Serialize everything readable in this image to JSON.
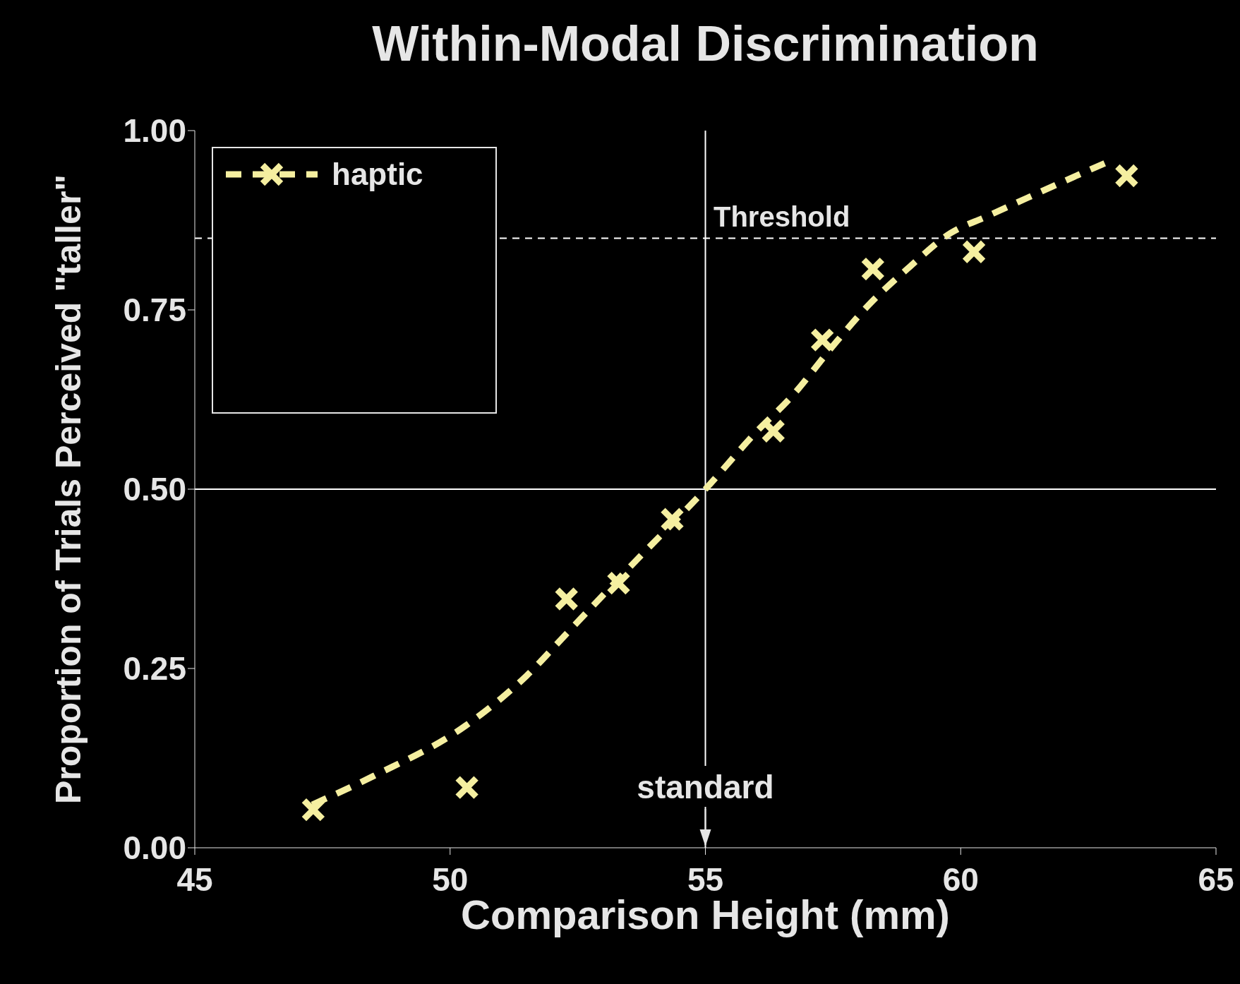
{
  "chart_data": {
    "type": "scatter",
    "title": "Within-Modal Discrimination",
    "xlabel": "Comparison Height (mm)",
    "ylabel": "Proportion of Trials Perceived \"taller\"",
    "xlim": [
      45,
      65
    ],
    "xticks": [
      45,
      50,
      55,
      60,
      65
    ],
    "ylim": [
      0,
      1
    ],
    "yticks": [
      {
        "value": 0,
        "label": "0.00"
      },
      {
        "value": 0.25,
        "label": "0.25"
      },
      {
        "value": 0.5,
        "label": "0.50"
      },
      {
        "value": 0.75,
        "label": "0.75"
      },
      {
        "value": 1,
        "label": "1.00"
      }
    ],
    "legend": "top left",
    "series": [
      {
        "name": "haptic",
        "marker": "cross",
        "color": "#f5efa0",
        "x": [
          47.32,
          50.33,
          52.28,
          53.3,
          54.35,
          56.33,
          57.29,
          58.28,
          60.26,
          63.25
        ],
        "values": [
          0.053,
          0.084,
          0.347,
          0.369,
          0.458,
          0.581,
          0.708,
          0.807,
          0.831,
          0.937
        ]
      },
      {
        "type": "line",
        "line_style": "dashed",
        "color": "#f5efa0",
        "x": [
          47.3,
          48.5,
          50.3,
          51.5,
          52.3,
          53.5,
          55,
          56,
          56.7,
          57.5,
          58.2,
          59,
          59.8,
          60.5,
          61.3,
          62.2,
          63
        ],
        "values": [
          0.06,
          0.1,
          0.17,
          0.24,
          0.3,
          0.39,
          0.5,
          0.58,
          0.63,
          0.7,
          0.757,
          0.81,
          0.857,
          0.88,
          0.906,
          0.935,
          0.96
        ]
      }
    ],
    "ref_lines": [
      {
        "axis": "y",
        "value": 0.85,
        "label": "Threshold",
        "line_style": "dashed",
        "color": "#ffffff"
      },
      {
        "axis": "y",
        "value": 0.5,
        "color": "#ffffff"
      },
      {
        "axis": "x",
        "value": 55,
        "label": "standard",
        "color": "#ffffff"
      }
    ]
  }
}
